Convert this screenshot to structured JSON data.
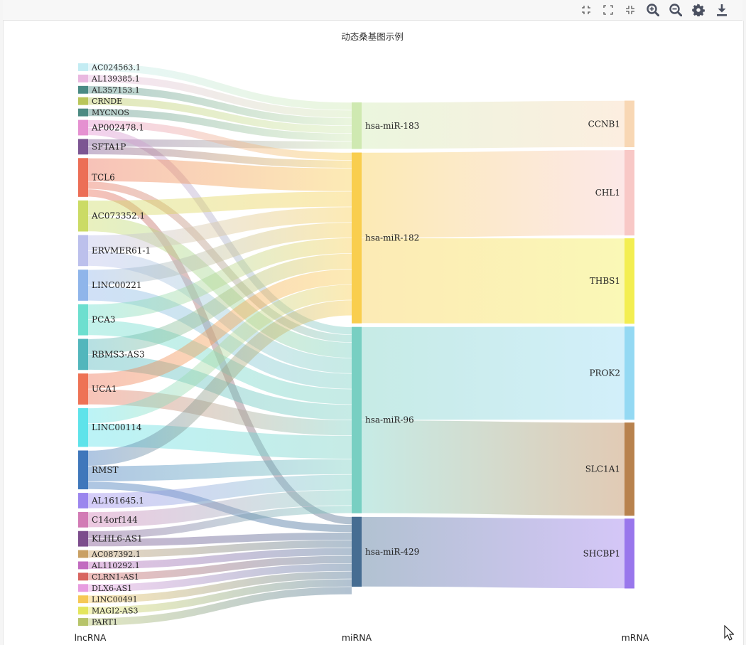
{
  "toolbar": {
    "buttons": [
      {
        "name": "shrink-icon",
        "label": "shrink"
      },
      {
        "name": "fullscreen-icon",
        "label": "fullscreen"
      },
      {
        "name": "collapse-icon",
        "label": "collapse"
      },
      {
        "name": "zoom-in-icon",
        "label": "zoom in"
      },
      {
        "name": "zoom-out-icon",
        "label": "zoom out"
      },
      {
        "name": "gear-icon",
        "label": "settings"
      },
      {
        "name": "download-icon",
        "label": "download"
      }
    ]
  },
  "chart_data": {
    "type": "sankey",
    "title": "动态桑基图示例",
    "columns": [
      "lncRNA",
      "miRNA",
      "mRNA"
    ],
    "nodes": [
      {
        "name": "AC024563.1",
        "column": 0,
        "value": 1,
        "color": "#c3ecf3"
      },
      {
        "name": "AL139385.1",
        "column": 0,
        "value": 1,
        "color": "#e9b8e0"
      },
      {
        "name": "AL357153.1",
        "column": 0,
        "value": 1,
        "color": "#4a8a84"
      },
      {
        "name": "CRNDE",
        "column": 0,
        "value": 1,
        "color": "#b9c65a"
      },
      {
        "name": "MYCNOS",
        "column": 0,
        "value": 1,
        "color": "#4c8a82"
      },
      {
        "name": "AP002478.1",
        "column": 0,
        "value": 2,
        "color": "#e591d1"
      },
      {
        "name": "SFTA1P",
        "column": 0,
        "value": 2,
        "color": "#7c5592"
      },
      {
        "name": "TCL6",
        "column": 0,
        "value": 5,
        "color": "#ec6e56"
      },
      {
        "name": "AC073352.1",
        "column": 0,
        "value": 4,
        "color": "#cbdb65"
      },
      {
        "name": "ERVMER61-1",
        "column": 0,
        "value": 4,
        "color": "#bcc0ec"
      },
      {
        "name": "LINC00221",
        "column": 0,
        "value": 4,
        "color": "#8fb5ea"
      },
      {
        "name": "PCA3",
        "column": 0,
        "value": 4,
        "color": "#6ddfcf"
      },
      {
        "name": "RBMS3-AS3",
        "column": 0,
        "value": 4,
        "color": "#52b6bc"
      },
      {
        "name": "UCA1",
        "column": 0,
        "value": 4,
        "color": "#ee7255"
      },
      {
        "name": "LINC00114",
        "column": 0,
        "value": 5,
        "color": "#5ee3ea"
      },
      {
        "name": "RMST",
        "column": 0,
        "value": 5,
        "color": "#3f77bb"
      },
      {
        "name": "AL161645.1",
        "column": 0,
        "value": 2,
        "color": "#9b86ee"
      },
      {
        "name": "C14orf144",
        "column": 0,
        "value": 2,
        "color": "#d27bb5"
      },
      {
        "name": "KLHL6-AS1",
        "column": 0,
        "value": 2,
        "color": "#7c4d8c"
      },
      {
        "name": "AC087392.1",
        "column": 0,
        "value": 1,
        "color": "#c9a064"
      },
      {
        "name": "AL110292.1",
        "column": 0,
        "value": 1,
        "color": "#c26cc0"
      },
      {
        "name": "CLRN1-AS1",
        "column": 0,
        "value": 1,
        "color": "#d86560"
      },
      {
        "name": "DLX6-AS1",
        "column": 0,
        "value": 1,
        "color": "#e79ce0"
      },
      {
        "name": "LINC00491",
        "column": 0,
        "value": 1,
        "color": "#f6c856"
      },
      {
        "name": "MAGI2-AS3",
        "column": 0,
        "value": 1,
        "color": "#e4e65e"
      },
      {
        "name": "PART1",
        "column": 0,
        "value": 1,
        "color": "#b7c46a"
      },
      {
        "name": "hsa-miR-183",
        "column": 1,
        "value": 6,
        "color": "#cfe9b1"
      },
      {
        "name": "hsa-miR-182",
        "column": 1,
        "value": 22,
        "color": "#f9ce4e"
      },
      {
        "name": "hsa-miR-96",
        "column": 1,
        "value": 24,
        "color": "#78cfc2"
      },
      {
        "name": "hsa-miR-429",
        "column": 1,
        "value": 9,
        "color": "#466d92"
      },
      {
        "name": "CCNB1",
        "column": 2,
        "value": 6,
        "color": "#f8d7b4"
      },
      {
        "name": "CHL1",
        "column": 2,
        "value": 11,
        "color": "#f8c8c6"
      },
      {
        "name": "THBS1",
        "column": 2,
        "value": 11,
        "color": "#f3ee51"
      },
      {
        "name": "PROK2",
        "column": 2,
        "value": 12,
        "color": "#94d9f3"
      },
      {
        "name": "SLC1A1",
        "column": 2,
        "value": 12,
        "color": "#b8824e"
      },
      {
        "name": "SHCBP1",
        "column": 2,
        "value": 9,
        "color": "#9977ec"
      }
    ],
    "links": [
      {
        "source": "AC024563.1",
        "target": "hsa-miR-183",
        "value": 1
      },
      {
        "source": "AL139385.1",
        "target": "hsa-miR-183",
        "value": 1
      },
      {
        "source": "AL357153.1",
        "target": "hsa-miR-183",
        "value": 1
      },
      {
        "source": "CRNDE",
        "target": "hsa-miR-183",
        "value": 1
      },
      {
        "source": "MYCNOS",
        "target": "hsa-miR-183",
        "value": 1
      },
      {
        "source": "SFTA1P",
        "target": "hsa-miR-183",
        "value": 1
      },
      {
        "source": "AP002478.1",
        "target": "hsa-miR-182",
        "value": 1
      },
      {
        "source": "AP002478.1",
        "target": "hsa-miR-96",
        "value": 1
      },
      {
        "source": "SFTA1P",
        "target": "hsa-miR-182",
        "value": 1
      },
      {
        "source": "TCL6",
        "target": "hsa-miR-182",
        "value": 3
      },
      {
        "source": "TCL6",
        "target": "hsa-miR-96",
        "value": 1
      },
      {
        "source": "TCL6",
        "target": "hsa-miR-429",
        "value": 1
      },
      {
        "source": "AC073352.1",
        "target": "hsa-miR-182",
        "value": 2
      },
      {
        "source": "AC073352.1",
        "target": "hsa-miR-96",
        "value": 2
      },
      {
        "source": "ERVMER61-1",
        "target": "hsa-miR-182",
        "value": 2
      },
      {
        "source": "ERVMER61-1",
        "target": "hsa-miR-96",
        "value": 2
      },
      {
        "source": "LINC00221",
        "target": "hsa-miR-182",
        "value": 2
      },
      {
        "source": "LINC00221",
        "target": "hsa-miR-96",
        "value": 2
      },
      {
        "source": "PCA3",
        "target": "hsa-miR-182",
        "value": 2
      },
      {
        "source": "PCA3",
        "target": "hsa-miR-96",
        "value": 2
      },
      {
        "source": "RBMS3-AS3",
        "target": "hsa-miR-182",
        "value": 2
      },
      {
        "source": "RBMS3-AS3",
        "target": "hsa-miR-96",
        "value": 2
      },
      {
        "source": "UCA1",
        "target": "hsa-miR-182",
        "value": 2
      },
      {
        "source": "UCA1",
        "target": "hsa-miR-96",
        "value": 2
      },
      {
        "source": "LINC00114",
        "target": "hsa-miR-182",
        "value": 2
      },
      {
        "source": "LINC00114",
        "target": "hsa-miR-96",
        "value": 3
      },
      {
        "source": "RMST",
        "target": "hsa-miR-182",
        "value": 2
      },
      {
        "source": "RMST",
        "target": "hsa-miR-96",
        "value": 2
      },
      {
        "source": "RMST",
        "target": "hsa-miR-429",
        "value": 1
      },
      {
        "source": "AL161645.1",
        "target": "hsa-miR-96",
        "value": 2
      },
      {
        "source": "C14orf144",
        "target": "hsa-miR-96",
        "value": 2
      },
      {
        "source": "KLHL6-AS1",
        "target": "hsa-miR-96",
        "value": 1
      },
      {
        "source": "KLHL6-AS1",
        "target": "hsa-miR-429",
        "value": 1
      },
      {
        "source": "AC087392.1",
        "target": "hsa-miR-429",
        "value": 1
      },
      {
        "source": "AL110292.1",
        "target": "hsa-miR-429",
        "value": 1
      },
      {
        "source": "CLRN1-AS1",
        "target": "hsa-miR-429",
        "value": 1
      },
      {
        "source": "DLX6-AS1",
        "target": "hsa-miR-429",
        "value": 1
      },
      {
        "source": "LINC00491",
        "target": "hsa-miR-429",
        "value": 1
      },
      {
        "source": "MAGI2-AS3",
        "target": "hsa-miR-429",
        "value": 1
      },
      {
        "source": "PART1",
        "target": "hsa-miR-429",
        "value": 1
      },
      {
        "source": "hsa-miR-183",
        "target": "CCNB1",
        "value": 6
      },
      {
        "source": "hsa-miR-182",
        "target": "CHL1",
        "value": 11
      },
      {
        "source": "hsa-miR-182",
        "target": "THBS1",
        "value": 11
      },
      {
        "source": "hsa-miR-96",
        "target": "PROK2",
        "value": 12
      },
      {
        "source": "hsa-miR-96",
        "target": "SLC1A1",
        "value": 12
      },
      {
        "source": "hsa-miR-429",
        "target": "SHCBP1",
        "value": 9
      }
    ]
  }
}
